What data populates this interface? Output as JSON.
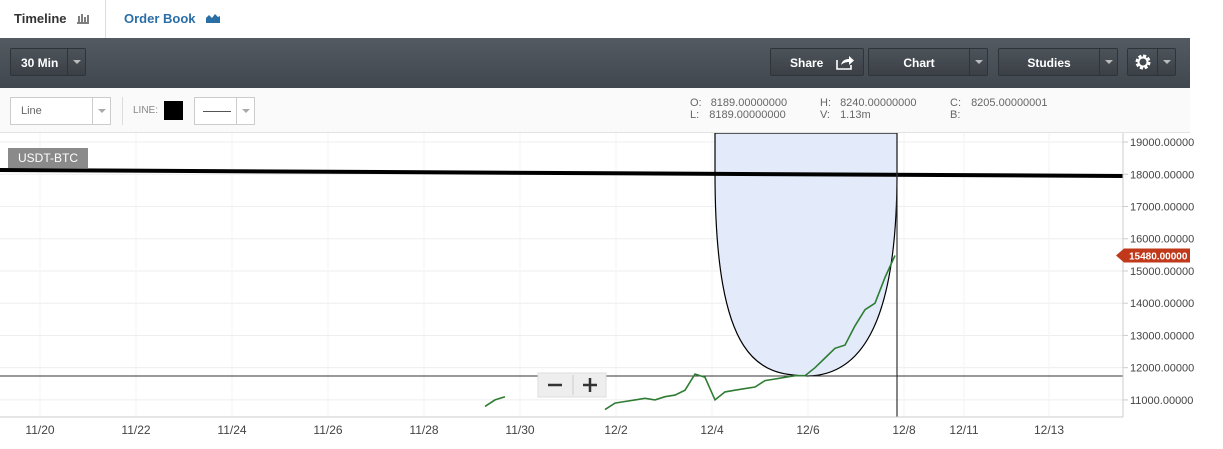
{
  "tabs": [
    "Timeline",
    "Order Book"
  ],
  "toolbar": {
    "interval": "30 Min",
    "share": "Share",
    "chart": "Chart",
    "studies": "Studies"
  },
  "subbar": {
    "chart_style": "Line",
    "line_label": "LINE:",
    "ohlc": {
      "o_label": "O:",
      "o": "8189.00000000",
      "h_label": "H:",
      "h": "8240.00000000",
      "c_label": "C:",
      "c": "8205.00000001",
      "l_label": "L:",
      "l": "8189.00000000",
      "v_label": "V:",
      "v": "1.13m",
      "b_label": "B:"
    }
  },
  "chart": {
    "type": "line",
    "label": "USDT-BTC",
    "color": "#2e7d32",
    "ylim": [
      10470,
      19280
    ],
    "yticks": [
      {
        "value": 19000,
        "label": "19000.00000"
      },
      {
        "value": 18000,
        "label": "18000.00000"
      },
      {
        "value": 17000,
        "label": "17000.00000"
      },
      {
        "value": 16000,
        "label": "16000.00000"
      },
      {
        "value": 15000,
        "label": "15000.00000"
      },
      {
        "value": 14000,
        "label": "14000.00000"
      },
      {
        "value": 13000,
        "label": "13000.00000"
      },
      {
        "value": 12000,
        "label": "12000.00000"
      },
      {
        "value": 11000,
        "label": "11000.00000"
      }
    ],
    "categories": [
      "11/20",
      "11/22",
      "11/24",
      "11/26",
      "11/28",
      "11/30",
      "12/2",
      "12/4",
      "12/6",
      "12/8",
      "12/11",
      "12/13"
    ],
    "values": [
      10800,
      11000,
      11100,
      null,
      null,
      null,
      null,
      null,
      null,
      null,
      null,
      null,
      10700,
      10900,
      10950,
      11000,
      11050,
      11000,
      11100,
      11150,
      11300,
      11800,
      11700,
      11000,
      11250,
      11300,
      11350,
      11400,
      11600,
      11650,
      11700,
      11750,
      11750,
      12000,
      12300,
      12600,
      12700,
      13300,
      13800,
      14000,
      14800,
      15480
    ],
    "last_price": {
      "value": 15480,
      "label": "15480.00000"
    }
  }
}
